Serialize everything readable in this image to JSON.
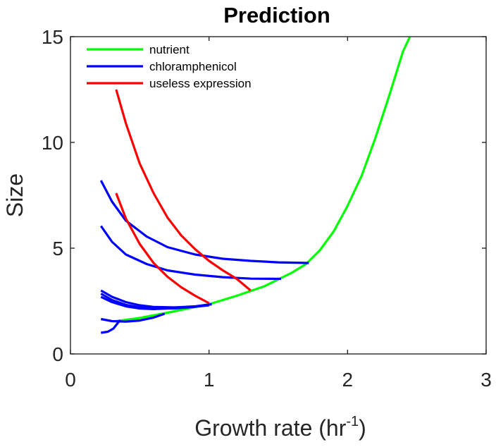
{
  "chart_data": {
    "type": "line",
    "title": "Prediction",
    "xlabel": "Growth rate (hr",
    "xlabel_sup": "-1",
    "xlabel_end": ")",
    "ylabel": "Size",
    "xlim": [
      0,
      3
    ],
    "ylim": [
      0,
      15
    ],
    "xticks": [
      0,
      1,
      2,
      3
    ],
    "yticks": [
      0,
      5,
      10,
      15
    ],
    "grid": false,
    "legend_position": "top-left",
    "series": [
      {
        "name": "nutrient",
        "color": "#00ff00",
        "points": [
          [
            0.33,
            1.55
          ],
          [
            0.5,
            1.7
          ],
          [
            0.7,
            1.95
          ],
          [
            0.9,
            2.22
          ],
          [
            1.0,
            2.35
          ],
          [
            1.2,
            2.75
          ],
          [
            1.4,
            3.2
          ],
          [
            1.6,
            3.85
          ],
          [
            1.7,
            4.25
          ],
          [
            1.8,
            4.9
          ],
          [
            1.9,
            5.8
          ],
          [
            2.0,
            7.0
          ],
          [
            2.1,
            8.4
          ],
          [
            2.2,
            10.2
          ],
          [
            2.3,
            12.2
          ],
          [
            2.4,
            14.3
          ],
          [
            2.45,
            15.0
          ]
        ]
      },
      {
        "name": "chloramphenicol",
        "color": "#0000ff",
        "points": [
          [
            0.22,
            8.2
          ],
          [
            0.3,
            7.2
          ],
          [
            0.4,
            6.3
          ],
          [
            0.55,
            5.55
          ],
          [
            0.7,
            5.05
          ],
          [
            0.9,
            4.7
          ],
          [
            1.1,
            4.5
          ],
          [
            1.3,
            4.4
          ],
          [
            1.5,
            4.33
          ],
          [
            1.72,
            4.3
          ]
        ]
      },
      {
        "name": "",
        "color": "#0000ff",
        "points": [
          [
            0.22,
            6.05
          ],
          [
            0.3,
            5.3
          ],
          [
            0.4,
            4.7
          ],
          [
            0.55,
            4.25
          ],
          [
            0.7,
            3.95
          ],
          [
            0.9,
            3.75
          ],
          [
            1.1,
            3.63
          ],
          [
            1.3,
            3.56
          ],
          [
            1.52,
            3.55
          ]
        ]
      },
      {
        "name": "",
        "color": "#0000ff",
        "points": [
          [
            0.22,
            3.0
          ],
          [
            0.3,
            2.7
          ],
          [
            0.4,
            2.45
          ],
          [
            0.5,
            2.3
          ],
          [
            0.6,
            2.22
          ],
          [
            0.75,
            2.2
          ],
          [
            0.9,
            2.25
          ],
          [
            1.02,
            2.35
          ]
        ]
      },
      {
        "name": "",
        "color": "#0000ff",
        "points": [
          [
            0.22,
            2.85
          ],
          [
            0.3,
            2.55
          ],
          [
            0.4,
            2.32
          ],
          [
            0.5,
            2.2
          ],
          [
            0.6,
            2.15
          ],
          [
            0.75,
            2.15
          ],
          [
            0.9,
            2.23
          ],
          [
            1.0,
            2.3
          ]
        ]
      },
      {
        "name": "",
        "color": "#0000ff",
        "points": [
          [
            0.22,
            2.7
          ],
          [
            0.3,
            2.45
          ],
          [
            0.4,
            2.25
          ],
          [
            0.5,
            2.15
          ],
          [
            0.6,
            2.12
          ],
          [
            0.7,
            2.15
          ]
        ]
      },
      {
        "name": "",
        "color": "#0000ff",
        "points": [
          [
            0.22,
            1.65
          ],
          [
            0.3,
            1.55
          ],
          [
            0.4,
            1.53
          ],
          [
            0.5,
            1.58
          ],
          [
            0.6,
            1.72
          ],
          [
            0.68,
            1.9
          ]
        ]
      },
      {
        "name": "",
        "color": "#0000ff",
        "points": [
          [
            0.22,
            1.0
          ],
          [
            0.27,
            1.05
          ],
          [
            0.31,
            1.2
          ],
          [
            0.34,
            1.45
          ],
          [
            0.36,
            1.6
          ]
        ]
      },
      {
        "name": "useless expression",
        "color": "#ff0000",
        "points": [
          [
            0.33,
            12.5
          ],
          [
            0.4,
            10.9
          ],
          [
            0.5,
            9.0
          ],
          [
            0.6,
            7.6
          ],
          [
            0.7,
            6.45
          ],
          [
            0.8,
            5.6
          ],
          [
            0.9,
            4.95
          ],
          [
            1.0,
            4.4
          ],
          [
            1.1,
            3.95
          ],
          [
            1.2,
            3.55
          ],
          [
            1.3,
            3.0
          ]
        ]
      },
      {
        "name": "",
        "color": "#ff0000",
        "points": [
          [
            0.33,
            7.6
          ],
          [
            0.4,
            6.4
          ],
          [
            0.5,
            5.2
          ],
          [
            0.6,
            4.3
          ],
          [
            0.7,
            3.65
          ],
          [
            0.8,
            3.15
          ],
          [
            0.9,
            2.75
          ],
          [
            1.0,
            2.4
          ]
        ]
      }
    ]
  }
}
